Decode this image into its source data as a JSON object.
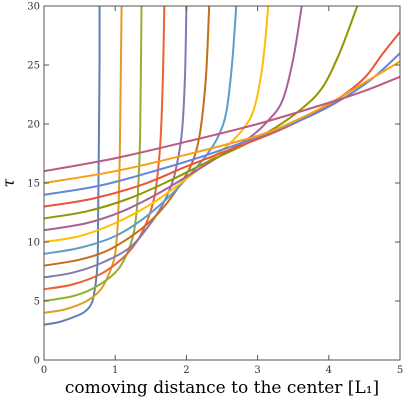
{
  "chart_data": {
    "type": "line",
    "title": "",
    "xlabel": "comoving distance to the center [L₁]",
    "ylabel": "τ",
    "xlim": [
      0,
      5
    ],
    "ylim": [
      0,
      30
    ],
    "xticks": [
      "0",
      "1",
      "2",
      "3",
      "4",
      "5"
    ],
    "yticks": [
      "0",
      "5",
      "10",
      "15",
      "20",
      "25",
      "30"
    ],
    "grid": false,
    "legend": false,
    "series": [
      {
        "color": "#5E81B5",
        "x": [
          0,
          0.2,
          0.4,
          0.55,
          0.65,
          0.7,
          0.75,
          0.76,
          0.77,
          0.78,
          0.78
        ],
        "y": [
          3.0,
          3.2,
          3.6,
          4.0,
          4.6,
          5.5,
          8.0,
          12.0,
          18.0,
          25.0,
          30.0
        ]
      },
      {
        "color": "#E19C24",
        "x": [
          0,
          0.3,
          0.6,
          0.8,
          0.92,
          1.0,
          1.04,
          1.06,
          1.07,
          1.08,
          1.09
        ],
        "y": [
          4.0,
          4.3,
          5.0,
          6.0,
          7.4,
          9.0,
          12.0,
          16.0,
          20.0,
          25.0,
          30.0
        ]
      },
      {
        "color": "#8FB032",
        "x": [
          0,
          0.4,
          0.7,
          1.0,
          1.15,
          1.25,
          1.3,
          1.33,
          1.35,
          1.36,
          1.37
        ],
        "y": [
          5.0,
          5.4,
          6.1,
          7.4,
          8.8,
          10.5,
          12.5,
          15.5,
          19.0,
          24.0,
          30.0
        ]
      },
      {
        "color": "#EB6235",
        "x": [
          0,
          0.4,
          0.8,
          1.1,
          1.3,
          1.45,
          1.55,
          1.6,
          1.64,
          1.67,
          1.69
        ],
        "y": [
          6.0,
          6.4,
          7.3,
          8.6,
          10.0,
          11.8,
          13.8,
          16.0,
          19.0,
          24.0,
          30.0
        ]
      },
      {
        "color": "#8778B3",
        "x": [
          0,
          0.4,
          0.8,
          1.2,
          1.45,
          1.65,
          1.8,
          1.88,
          1.94,
          1.98,
          2.0
        ],
        "y": [
          7.0,
          7.4,
          8.2,
          9.5,
          11.2,
          13.0,
          15.0,
          17.0,
          19.5,
          24.0,
          30.0
        ]
      },
      {
        "color": "#C56E1A",
        "x": [
          0,
          0.5,
          0.9,
          1.3,
          1.6,
          1.85,
          2.05,
          2.15,
          2.22,
          2.28,
          2.32
        ],
        "y": [
          8.0,
          8.5,
          9.3,
          10.8,
          12.4,
          14.3,
          16.3,
          18.0,
          20.5,
          24.5,
          30.0
        ]
      },
      {
        "color": "#5D9EC7",
        "x": [
          0,
          0.5,
          1.0,
          1.4,
          1.75,
          2.05,
          2.3,
          2.45,
          2.56,
          2.64,
          2.7
        ],
        "y": [
          9.0,
          9.5,
          10.5,
          12.0,
          13.8,
          15.7,
          17.5,
          19.0,
          21.0,
          25.0,
          30.0
        ]
      },
      {
        "color": "#FFBF00",
        "x": [
          0,
          0.5,
          1.0,
          1.5,
          1.9,
          2.3,
          2.6,
          2.8,
          2.95,
          3.07,
          3.15
        ],
        "y": [
          10.0,
          10.5,
          11.6,
          13.2,
          14.9,
          16.8,
          18.3,
          19.6,
          21.3,
          25.0,
          30.0
        ]
      },
      {
        "color": "#A5609D",
        "x": [
          0,
          0.6,
          1.1,
          1.6,
          2.1,
          2.5,
          2.9,
          3.15,
          3.35,
          3.5,
          3.62
        ],
        "y": [
          11.0,
          11.6,
          12.6,
          14.1,
          15.9,
          17.4,
          18.9,
          20.3,
          22.0,
          25.5,
          30.0
        ]
      },
      {
        "color": "#929600",
        "x": [
          0,
          0.6,
          1.2,
          1.8,
          2.3,
          2.8,
          3.25,
          3.6,
          3.9,
          4.15,
          4.4
        ],
        "y": [
          12.0,
          12.6,
          13.7,
          15.3,
          16.8,
          18.2,
          19.7,
          21.2,
          23.0,
          26.0,
          30.0
        ]
      },
      {
        "color": "#E95536",
        "x": [
          0,
          0.7,
          1.4,
          2.0,
          2.6,
          3.2,
          3.7,
          4.1,
          4.5,
          4.75,
          5.0
        ],
        "y": [
          13.0,
          13.7,
          14.9,
          16.4,
          17.8,
          19.2,
          20.6,
          22.0,
          23.9,
          25.9,
          27.8
        ]
      },
      {
        "color": "#6685D9",
        "x": [
          0,
          0.8,
          1.6,
          2.3,
          3.0,
          3.6,
          4.1,
          4.6,
          5.0
        ],
        "y": [
          14.0,
          14.8,
          16.1,
          17.4,
          18.9,
          20.3,
          21.8,
          23.8,
          26.0
        ]
      },
      {
        "color": "#F89F13",
        "x": [
          0,
          1.0,
          2.0,
          3.0,
          3.5,
          4.0,
          4.5,
          5.0
        ],
        "y": [
          15.0,
          16.0,
          17.4,
          19.0,
          20.2,
          21.7,
          23.5,
          25.3
        ]
      },
      {
        "color": "#BC5B80",
        "x": [
          0,
          1.0,
          2.0,
          3.0,
          4.0,
          4.5,
          5.0
        ],
        "y": [
          16.0,
          17.1,
          18.5,
          20.0,
          21.8,
          22.8,
          24.0
        ]
      }
    ]
  }
}
